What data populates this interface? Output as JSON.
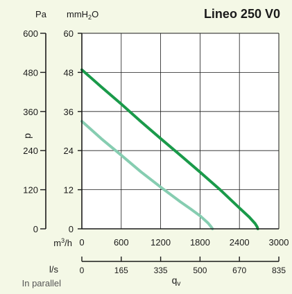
{
  "chart_data": {
    "type": "line",
    "title": "Lineo 250 V0",
    "units": {
      "pa": "Pa",
      "mmh2o_main": "mmH",
      "mmh2o_sub": "2",
      "mmh2o_tail": "O",
      "m3h_main": "m",
      "m3h_sup": "3",
      "m3h_tail": "/h",
      "ls": "l/s",
      "mode": "In parallel"
    },
    "ylabel": "p",
    "xlabel_main": "q",
    "xlabel_sub": "v",
    "x_ticks_m3h": [
      "0",
      "600",
      "1200",
      "1800",
      "2400",
      "3000"
    ],
    "x_ticks_ls": [
      "0",
      "165",
      "335",
      "500",
      "670",
      "835"
    ],
    "y_ticks_mmh2o": [
      "0",
      "12",
      "24",
      "36",
      "48",
      "60"
    ],
    "y_ticks_pa": [
      "0",
      "120",
      "240",
      "360",
      "480",
      "600"
    ],
    "xlim": [
      0,
      3000
    ],
    "ylim": [
      0,
      60
    ],
    "grid": true,
    "series": [
      {
        "color": "#1a9a4a",
        "x": [
          0,
          300,
          600,
          900,
          1200,
          1500,
          1800,
          2100,
          2400,
          2550,
          2640,
          2670,
          2680
        ],
        "y": [
          48.8,
          43.5,
          38.3,
          32.9,
          27.7,
          22.6,
          17.4,
          12.1,
          6.4,
          3.6,
          1.6,
          0.6,
          0
        ]
      },
      {
        "color": "#86cdb1",
        "x": [
          0,
          300,
          600,
          900,
          1200,
          1500,
          1650,
          1800,
          1920,
          1970,
          1990
        ],
        "y": [
          33.0,
          27.6,
          22.6,
          17.5,
          12.8,
          8.3,
          6.2,
          4.0,
          1.8,
          0.6,
          0
        ]
      }
    ]
  }
}
